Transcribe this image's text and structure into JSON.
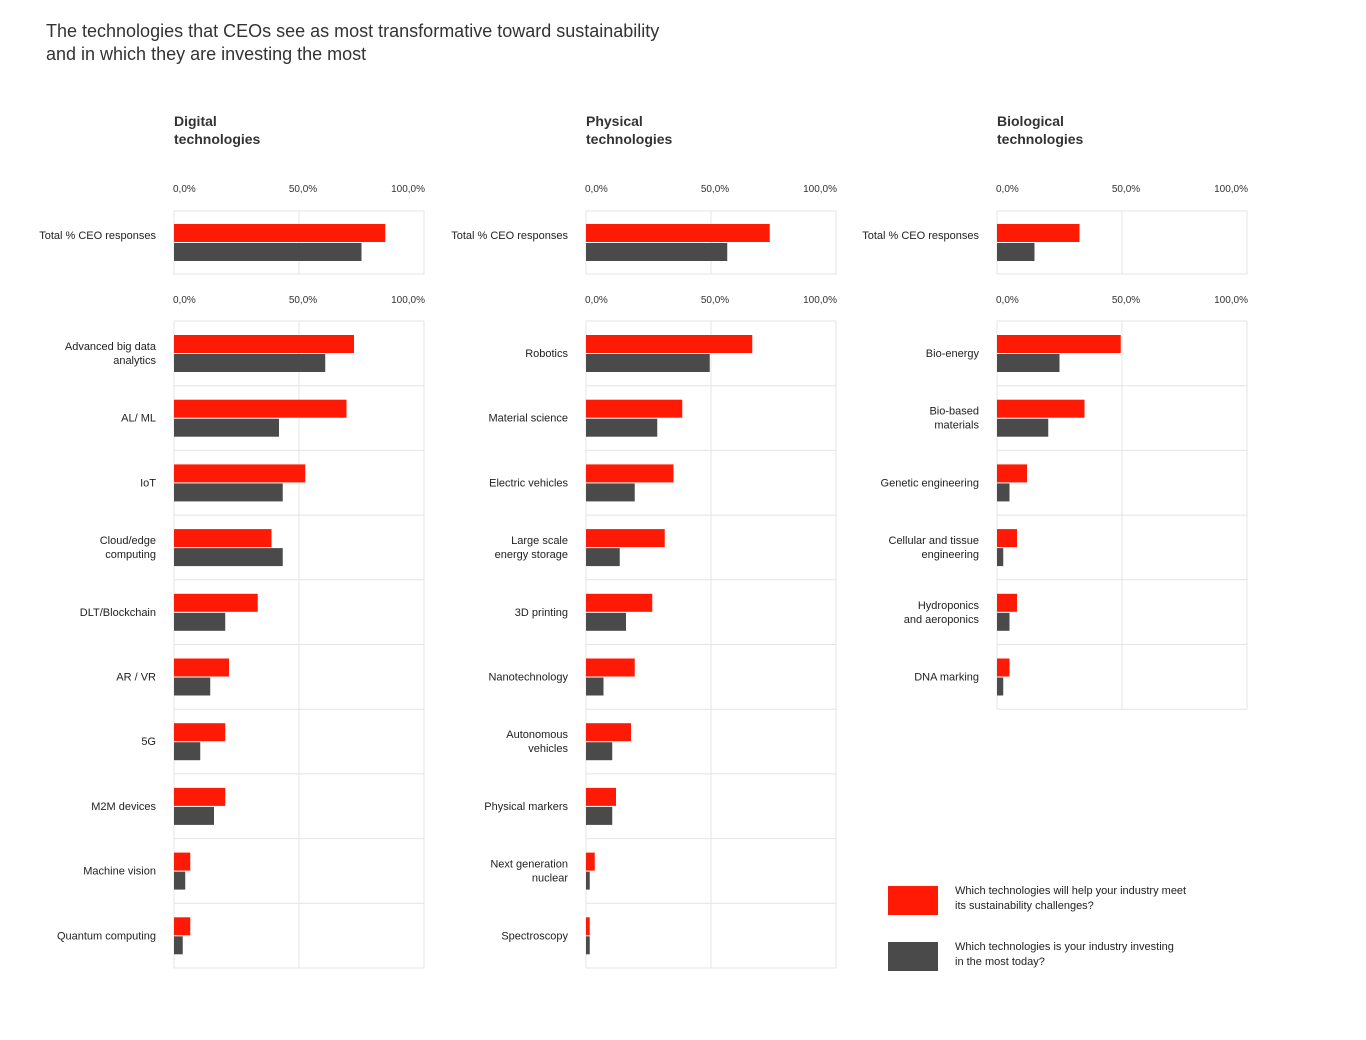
{
  "title": [
    "The technologies that CEOs see as most transformative toward sustainability",
    "and in which they are investing the most"
  ],
  "colors": {
    "help": "#ff1a05",
    "invest": "#4a4a4a",
    "grid": "#e4e4e4"
  },
  "legend": [
    {
      "lines": [
        "Which technologies will help your industry meet",
        "its sustainability challenges?"
      ],
      "color": "#ff1a05"
    },
    {
      "lines": [
        "Which technologies is your industry investing",
        "in the most today?"
      ],
      "color": "#4a4a4a"
    }
  ],
  "chart_data": [
    {
      "type": "bar",
      "panel": [
        "Digital",
        "technologies"
      ],
      "tick_labels": [
        "0,0%",
        "50,0%",
        "100,0%"
      ],
      "xlim": [
        0,
        100
      ],
      "total": {
        "label": [
          "Total % CEO responses"
        ],
        "values": [
          84.5,
          75
        ]
      },
      "categories": [
        {
          "label": [
            "Advanced big data",
            "analytics"
          ],
          "values": [
            72,
            60.5
          ]
        },
        {
          "label": [
            "AL/ ML"
          ],
          "values": [
            69,
            42
          ]
        },
        {
          "label": [
            "IoT"
          ],
          "values": [
            52.5,
            43.5
          ]
        },
        {
          "label": [
            "Cloud/edge",
            "computing"
          ],
          "values": [
            39,
            43.5
          ]
        },
        {
          "label": [
            "DLT/Blockchain"
          ],
          "values": [
            33.5,
            20.5
          ]
        },
        {
          "label": [
            "AR / VR"
          ],
          "values": [
            22,
            14.5
          ]
        },
        {
          "label": [
            "5G"
          ],
          "values": [
            20.5,
            10.5
          ]
        },
        {
          "label": [
            "M2M devices"
          ],
          "values": [
            20.5,
            16
          ]
        },
        {
          "label": [
            "Machine vision"
          ],
          "values": [
            6.5,
            4.5
          ]
        },
        {
          "label": [
            "Quantum computing"
          ],
          "values": [
            6.5,
            3.5
          ]
        }
      ]
    },
    {
      "type": "bar",
      "panel": [
        "Physical",
        "technologies"
      ],
      "tick_labels": [
        "0,0%",
        "50,0%",
        "100,0%"
      ],
      "xlim": [
        0,
        100
      ],
      "total": {
        "label": [
          "Total % CEO responses"
        ],
        "values": [
          73.5,
          56.5
        ]
      },
      "categories": [
        {
          "label": [
            "Robotics"
          ],
          "values": [
            66.5,
            49.5
          ]
        },
        {
          "label": [
            "Material science"
          ],
          "values": [
            38.5,
            28.5
          ]
        },
        {
          "label": [
            "Electric vehicles"
          ],
          "values": [
            35,
            19.5
          ]
        },
        {
          "label": [
            "Large scale",
            "energy storage"
          ],
          "values": [
            31.5,
            13.5
          ]
        },
        {
          "label": [
            "3D printing"
          ],
          "values": [
            26.5,
            16
          ]
        },
        {
          "label": [
            "Nanotechnology"
          ],
          "values": [
            19.5,
            7
          ]
        },
        {
          "label": [
            "Autonomous",
            "vehicles"
          ],
          "values": [
            18,
            10.5
          ]
        },
        {
          "label": [
            "Physical markers"
          ],
          "values": [
            12,
            10.5
          ]
        },
        {
          "label": [
            "Next generation",
            "nuclear"
          ],
          "values": [
            3.5,
            1.5
          ]
        },
        {
          "label": [
            "Spectroscopy"
          ],
          "values": [
            1.5,
            1.5
          ]
        }
      ]
    },
    {
      "type": "bar",
      "panel": [
        "Biological",
        "technologies"
      ],
      "tick_labels": [
        "0,0%",
        "50,0%",
        "100,0%"
      ],
      "xlim": [
        0,
        100
      ],
      "total": {
        "label": [
          "Total % CEO responses"
        ],
        "values": [
          33,
          15
        ]
      },
      "categories": [
        {
          "label": [
            "Bio-energy"
          ],
          "values": [
            49.5,
            25
          ]
        },
        {
          "label": [
            "Bio-based",
            "materials"
          ],
          "values": [
            35,
            20.5
          ]
        },
        {
          "label": [
            "Genetic engineering"
          ],
          "values": [
            12,
            5
          ]
        },
        {
          "label": [
            "Cellular and tissue",
            "engineering"
          ],
          "values": [
            8,
            2.5
          ]
        },
        {
          "label": [
            "Hydroponics",
            "and aeroponics"
          ],
          "values": [
            8,
            5
          ]
        },
        {
          "label": [
            "DNA marking"
          ],
          "values": [
            5,
            2.5
          ]
        }
      ]
    }
  ]
}
